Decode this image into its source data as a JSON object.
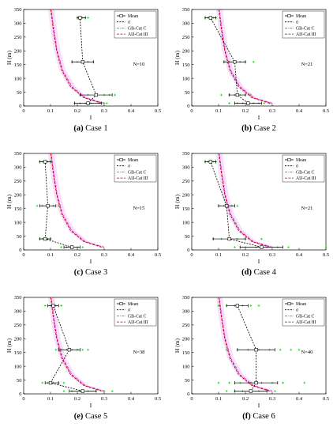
{
  "chart_data": [
    {
      "type": "line",
      "caption_label": "(a)",
      "caption_text": "Case 1",
      "xlabel": "I",
      "ylabel": "H (m)",
      "xlim": [
        0,
        0.5
      ],
      "ylim": [
        0,
        350
      ],
      "xticks": [
        0,
        0.1,
        0.2,
        0.3,
        0.4,
        0.5
      ],
      "xtick_labels": [
        "0",
        "0.1",
        "0.2",
        "0.3",
        "0.4",
        "0.5"
      ],
      "yticks": [
        0,
        50,
        100,
        150,
        200,
        250,
        300,
        350
      ],
      "ytick_labels": [
        "0",
        "50",
        "100",
        "150",
        "200",
        "250",
        "300",
        "350"
      ],
      "annotation": "N=10",
      "legend": [
        "Mean",
        "σ",
        "GB-Cat C",
        "AIJ-Cat III"
      ],
      "legend_position": "top-right",
      "series": [
        {
          "name": "Mean",
          "x": [
            0.24,
            0.27,
            0.22,
            0.21
          ],
          "y": [
            10,
            40,
            160,
            320
          ]
        },
        {
          "name": "σ",
          "lo": [
            0.19,
            0.21,
            0.18,
            0.2
          ],
          "hi": [
            0.29,
            0.33,
            0.26,
            0.23
          ],
          "y": [
            10,
            40,
            160,
            320
          ]
        },
        {
          "name": "GB-Cat C",
          "x": [
            0.3,
            0.23,
            0.18,
            0.145,
            0.125,
            0.112,
            0.103
          ],
          "y": [
            10,
            30,
            70,
            130,
            200,
            280,
            350
          ]
        },
        {
          "name": "AIJ-Cat III",
          "x": [
            0.29,
            0.225,
            0.175,
            0.142,
            0.123,
            0.11,
            0.101
          ],
          "y": [
            10,
            30,
            70,
            130,
            200,
            280,
            350
          ]
        }
      ],
      "samples": [
        {
          "y": 10,
          "x": [
            0.19,
            0.21,
            0.23,
            0.25,
            0.28,
            0.3,
            0.31
          ]
        },
        {
          "y": 40,
          "x": [
            0.21,
            0.24,
            0.27,
            0.3,
            0.32,
            0.34
          ]
        },
        {
          "y": 160,
          "x": [
            0.18,
            0.2,
            0.22,
            0.24,
            0.26
          ]
        },
        {
          "y": 320,
          "x": [
            0.2,
            0.21,
            0.22,
            0.23,
            0.24
          ]
        }
      ]
    },
    {
      "type": "line",
      "caption_label": "(b)",
      "caption_text": "Case 2",
      "xlabel": "I",
      "ylabel": "H (m)",
      "xlim": [
        0,
        0.5
      ],
      "ylim": [
        0,
        350
      ],
      "xticks": [
        0,
        0.1,
        0.2,
        0.3,
        0.4,
        0.5
      ],
      "xtick_labels": [
        "0",
        "0.1",
        "0.2",
        "0.3",
        "0.4",
        "0.5"
      ],
      "yticks": [
        0,
        50,
        100,
        150,
        200,
        250,
        300,
        350
      ],
      "ytick_labels": [
        "0",
        "50",
        "100",
        "150",
        "200",
        "250",
        "300",
        "350"
      ],
      "annotation": "N=21",
      "legend": [
        "Mean",
        "σ",
        "GB-Cat C",
        "AIJ-Cat III"
      ],
      "legend_position": "top-right",
      "series": [
        {
          "name": "Mean",
          "x": [
            0.21,
            0.17,
            0.16,
            0.07
          ],
          "y": [
            10,
            40,
            160,
            320
          ]
        },
        {
          "name": "σ",
          "lo": [
            0.16,
            0.14,
            0.12,
            0.05
          ],
          "hi": [
            0.26,
            0.2,
            0.2,
            0.09
          ],
          "y": [
            10,
            40,
            160,
            320
          ]
        },
        {
          "name": "GB-Cat C",
          "x": [
            0.3,
            0.23,
            0.18,
            0.145,
            0.125,
            0.112,
            0.103
          ],
          "y": [
            10,
            30,
            70,
            130,
            200,
            280,
            350
          ]
        },
        {
          "name": "AIJ-Cat III",
          "x": [
            0.29,
            0.225,
            0.175,
            0.142,
            0.123,
            0.11,
            0.101
          ],
          "y": [
            10,
            30,
            70,
            130,
            200,
            280,
            350
          ]
        }
      ],
      "samples": [
        {
          "y": 10,
          "x": [
            0.14,
            0.17,
            0.19,
            0.21,
            0.23,
            0.25,
            0.27,
            0.29
          ]
        },
        {
          "y": 40,
          "x": [
            0.11,
            0.14,
            0.16,
            0.18,
            0.2,
            0.22
          ]
        },
        {
          "y": 160,
          "x": [
            0.12,
            0.14,
            0.16,
            0.18,
            0.2,
            0.23
          ]
        },
        {
          "y": 320,
          "x": [
            0.05,
            0.06,
            0.07,
            0.08,
            0.09
          ]
        }
      ]
    },
    {
      "type": "line",
      "caption_label": "(c)",
      "caption_text": "Case 3",
      "xlabel": "I",
      "ylabel": "H (m)",
      "xlim": [
        0,
        0.5
      ],
      "ylim": [
        0,
        350
      ],
      "xticks": [
        0,
        0.1,
        0.2,
        0.3,
        0.4,
        0.5
      ],
      "xtick_labels": [
        "0",
        "0.1",
        "0.2",
        "0.3",
        "0.4",
        "0.5"
      ],
      "yticks": [
        0,
        50,
        100,
        150,
        200,
        250,
        300,
        350
      ],
      "ytick_labels": [
        "0",
        "50",
        "100",
        "150",
        "200",
        "250",
        "300",
        "350"
      ],
      "annotation": "N=15",
      "legend": [
        "Mean",
        "σ",
        "GB-Cat C",
        "AIJ-Cat III"
      ],
      "legend_position": "top-right",
      "series": [
        {
          "name": "Mean",
          "x": [
            0.18,
            0.08,
            0.09,
            0.08
          ],
          "y": [
            10,
            40,
            160,
            320
          ]
        },
        {
          "name": "σ",
          "lo": [
            0.15,
            0.06,
            0.06,
            0.06
          ],
          "hi": [
            0.21,
            0.1,
            0.12,
            0.1
          ],
          "y": [
            10,
            40,
            160,
            320
          ]
        },
        {
          "name": "GB-Cat C",
          "x": [
            0.3,
            0.23,
            0.18,
            0.145,
            0.125,
            0.112,
            0.103
          ],
          "y": [
            10,
            30,
            70,
            130,
            200,
            280,
            350
          ]
        },
        {
          "name": "AIJ-Cat III",
          "x": [
            0.29,
            0.225,
            0.175,
            0.142,
            0.123,
            0.11,
            0.101
          ],
          "y": [
            10,
            30,
            70,
            130,
            200,
            280,
            350
          ]
        }
      ],
      "samples": [
        {
          "y": 10,
          "x": [
            0.14,
            0.16,
            0.18,
            0.2,
            0.22
          ]
        },
        {
          "y": 40,
          "x": [
            0.06,
            0.07,
            0.08,
            0.09,
            0.1
          ]
        },
        {
          "y": 160,
          "x": [
            0.05,
            0.07,
            0.09,
            0.11,
            0.13
          ]
        },
        {
          "y": 320,
          "x": [
            0.06,
            0.07,
            0.08,
            0.09,
            0.1
          ]
        }
      ]
    },
    {
      "type": "line",
      "caption_label": "(d)",
      "caption_text": "Case 4",
      "xlabel": "I",
      "ylabel": "H (m)",
      "xlim": [
        0,
        0.5
      ],
      "ylim": [
        0,
        350
      ],
      "xticks": [
        0,
        0.1,
        0.2,
        0.3,
        0.4,
        0.5
      ],
      "xtick_labels": [
        "0",
        "0.1",
        "0.2",
        "0.3",
        "0.4",
        "0.5"
      ],
      "yticks": [
        0,
        50,
        100,
        150,
        200,
        250,
        300,
        350
      ],
      "ytick_labels": [
        "0",
        "50",
        "100",
        "150",
        "200",
        "250",
        "300",
        "350"
      ],
      "annotation": "N=21",
      "legend": [
        "Mean",
        "σ",
        "GB-Cat C",
        "AIJ-Cat III"
      ],
      "legend_position": "top-right",
      "series": [
        {
          "name": "Mean",
          "x": [
            0.26,
            0.14,
            0.13,
            0.07
          ],
          "y": [
            10,
            40,
            160,
            320
          ]
        },
        {
          "name": "σ",
          "lo": [
            0.18,
            0.08,
            0.1,
            0.05
          ],
          "hi": [
            0.34,
            0.2,
            0.16,
            0.09
          ],
          "y": [
            10,
            40,
            160,
            320
          ]
        },
        {
          "name": "GB-Cat C",
          "x": [
            0.3,
            0.23,
            0.18,
            0.145,
            0.125,
            0.112,
            0.103
          ],
          "y": [
            10,
            30,
            70,
            130,
            200,
            280,
            350
          ]
        },
        {
          "name": "AIJ-Cat III",
          "x": [
            0.29,
            0.225,
            0.175,
            0.142,
            0.123,
            0.11,
            0.101
          ],
          "y": [
            10,
            30,
            70,
            130,
            200,
            280,
            350
          ]
        }
      ],
      "samples": [
        {
          "y": 10,
          "x": [
            0.16,
            0.2,
            0.24,
            0.28,
            0.32,
            0.36,
            0.5
          ]
        },
        {
          "y": 40,
          "x": [
            0.08,
            0.11,
            0.14,
            0.17,
            0.2,
            0.26
          ]
        },
        {
          "y": 160,
          "x": [
            0.1,
            0.12,
            0.13,
            0.15,
            0.17
          ]
        },
        {
          "y": 320,
          "x": [
            0.05,
            0.06,
            0.07,
            0.08,
            0.09
          ]
        }
      ]
    },
    {
      "type": "line",
      "caption_label": "(e)",
      "caption_text": "Case 5",
      "xlabel": "I",
      "ylabel": "H (m)",
      "xlim": [
        0,
        0.5
      ],
      "ylim": [
        0,
        350
      ],
      "xticks": [
        0,
        0.1,
        0.2,
        0.3,
        0.4,
        0.5
      ],
      "xtick_labels": [
        "0",
        "0.1",
        "0.2",
        "0.3",
        "0.4",
        "0.5"
      ],
      "yticks": [
        0,
        50,
        100,
        150,
        200,
        250,
        300,
        350
      ],
      "ytick_labels": [
        "0",
        "50",
        "100",
        "150",
        "200",
        "250",
        "300",
        "350"
      ],
      "annotation": "N=38",
      "legend": [
        "Mean",
        "σ",
        "GB-Cat C",
        "AIJ-Cat III"
      ],
      "legend_position": "top-right",
      "series": [
        {
          "name": "Mean",
          "x": [
            0.22,
            0.1,
            0.17,
            0.11
          ],
          "y": [
            10,
            40,
            160,
            320
          ]
        },
        {
          "name": "σ",
          "lo": [
            0.17,
            0.08,
            0.13,
            0.09
          ],
          "hi": [
            0.27,
            0.13,
            0.21,
            0.13
          ],
          "y": [
            10,
            40,
            160,
            320
          ]
        },
        {
          "name": "GB-Cat C",
          "x": [
            0.3,
            0.23,
            0.18,
            0.145,
            0.125,
            0.112,
            0.103
          ],
          "y": [
            10,
            30,
            70,
            130,
            200,
            280,
            350
          ]
        },
        {
          "name": "AIJ-Cat III",
          "x": [
            0.29,
            0.225,
            0.175,
            0.142,
            0.123,
            0.11,
            0.101
          ],
          "y": [
            10,
            30,
            70,
            130,
            200,
            280,
            350
          ]
        }
      ],
      "samples": [
        {
          "y": 10,
          "x": [
            0.15,
            0.18,
            0.21,
            0.24,
            0.27,
            0.3,
            0.33
          ]
        },
        {
          "y": 40,
          "x": [
            0.07,
            0.09,
            0.1,
            0.11,
            0.13,
            0.15
          ]
        },
        {
          "y": 160,
          "x": [
            0.12,
            0.14,
            0.16,
            0.18,
            0.2,
            0.22,
            0.24
          ]
        },
        {
          "y": 320,
          "x": [
            0.08,
            0.1,
            0.11,
            0.12,
            0.14
          ]
        }
      ]
    },
    {
      "type": "line",
      "caption_label": "(f)",
      "caption_text": "Case 6",
      "xlabel": "I",
      "ylabel": "H (m)",
      "xlim": [
        0,
        0.5
      ],
      "ylim": [
        0,
        350
      ],
      "xticks": [
        0,
        0.1,
        0.2,
        0.3,
        0.4,
        0.5
      ],
      "xtick_labels": [
        "0",
        "0.1",
        "0.2",
        "0.3",
        "0.4",
        "0.5"
      ],
      "yticks": [
        0,
        50,
        100,
        150,
        200,
        250,
        300,
        350
      ],
      "ytick_labels": [
        "0",
        "50",
        "100",
        "150",
        "200",
        "250",
        "300",
        "350"
      ],
      "annotation": "N=40",
      "legend": [
        "Mean",
        "σ",
        "GB-Cat C",
        "AIJ-Cat III"
      ],
      "legend_position": "top-right",
      "series": [
        {
          "name": "Mean",
          "x": [
            0.22,
            0.24,
            0.24,
            0.17
          ],
          "y": [
            10,
            40,
            160,
            320
          ]
        },
        {
          "name": "σ",
          "lo": [
            0.16,
            0.16,
            0.17,
            0.13
          ],
          "hi": [
            0.28,
            0.32,
            0.31,
            0.21
          ],
          "y": [
            10,
            40,
            160,
            320
          ]
        },
        {
          "name": "GB-Cat C",
          "x": [
            0.3,
            0.23,
            0.18,
            0.145,
            0.125,
            0.112,
            0.103
          ],
          "y": [
            10,
            30,
            70,
            130,
            200,
            280,
            350
          ]
        },
        {
          "name": "AIJ-Cat III",
          "x": [
            0.29,
            0.225,
            0.175,
            0.142,
            0.123,
            0.11,
            0.101
          ],
          "y": [
            10,
            30,
            70,
            130,
            200,
            280,
            350
          ]
        }
      ],
      "samples": [
        {
          "y": 10,
          "x": [
            0.13,
            0.16,
            0.19,
            0.22,
            0.25,
            0.28,
            0.31
          ]
        },
        {
          "y": 40,
          "x": [
            0.1,
            0.14,
            0.18,
            0.22,
            0.26,
            0.3,
            0.34,
            0.42
          ]
        },
        {
          "y": 160,
          "x": [
            0.13,
            0.17,
            0.21,
            0.25,
            0.29,
            0.33,
            0.37,
            0.4
          ]
        },
        {
          "y": 320,
          "x": [
            0.1,
            0.13,
            0.16,
            0.19,
            0.22,
            0.25
          ]
        }
      ]
    }
  ],
  "colors": {
    "axis": "#000000",
    "mean": "#000000",
    "sigma": "#000000",
    "gb": "#d020d0",
    "aij": "#c00000",
    "samples": "#22cc22",
    "band": "#f4c8f4"
  }
}
